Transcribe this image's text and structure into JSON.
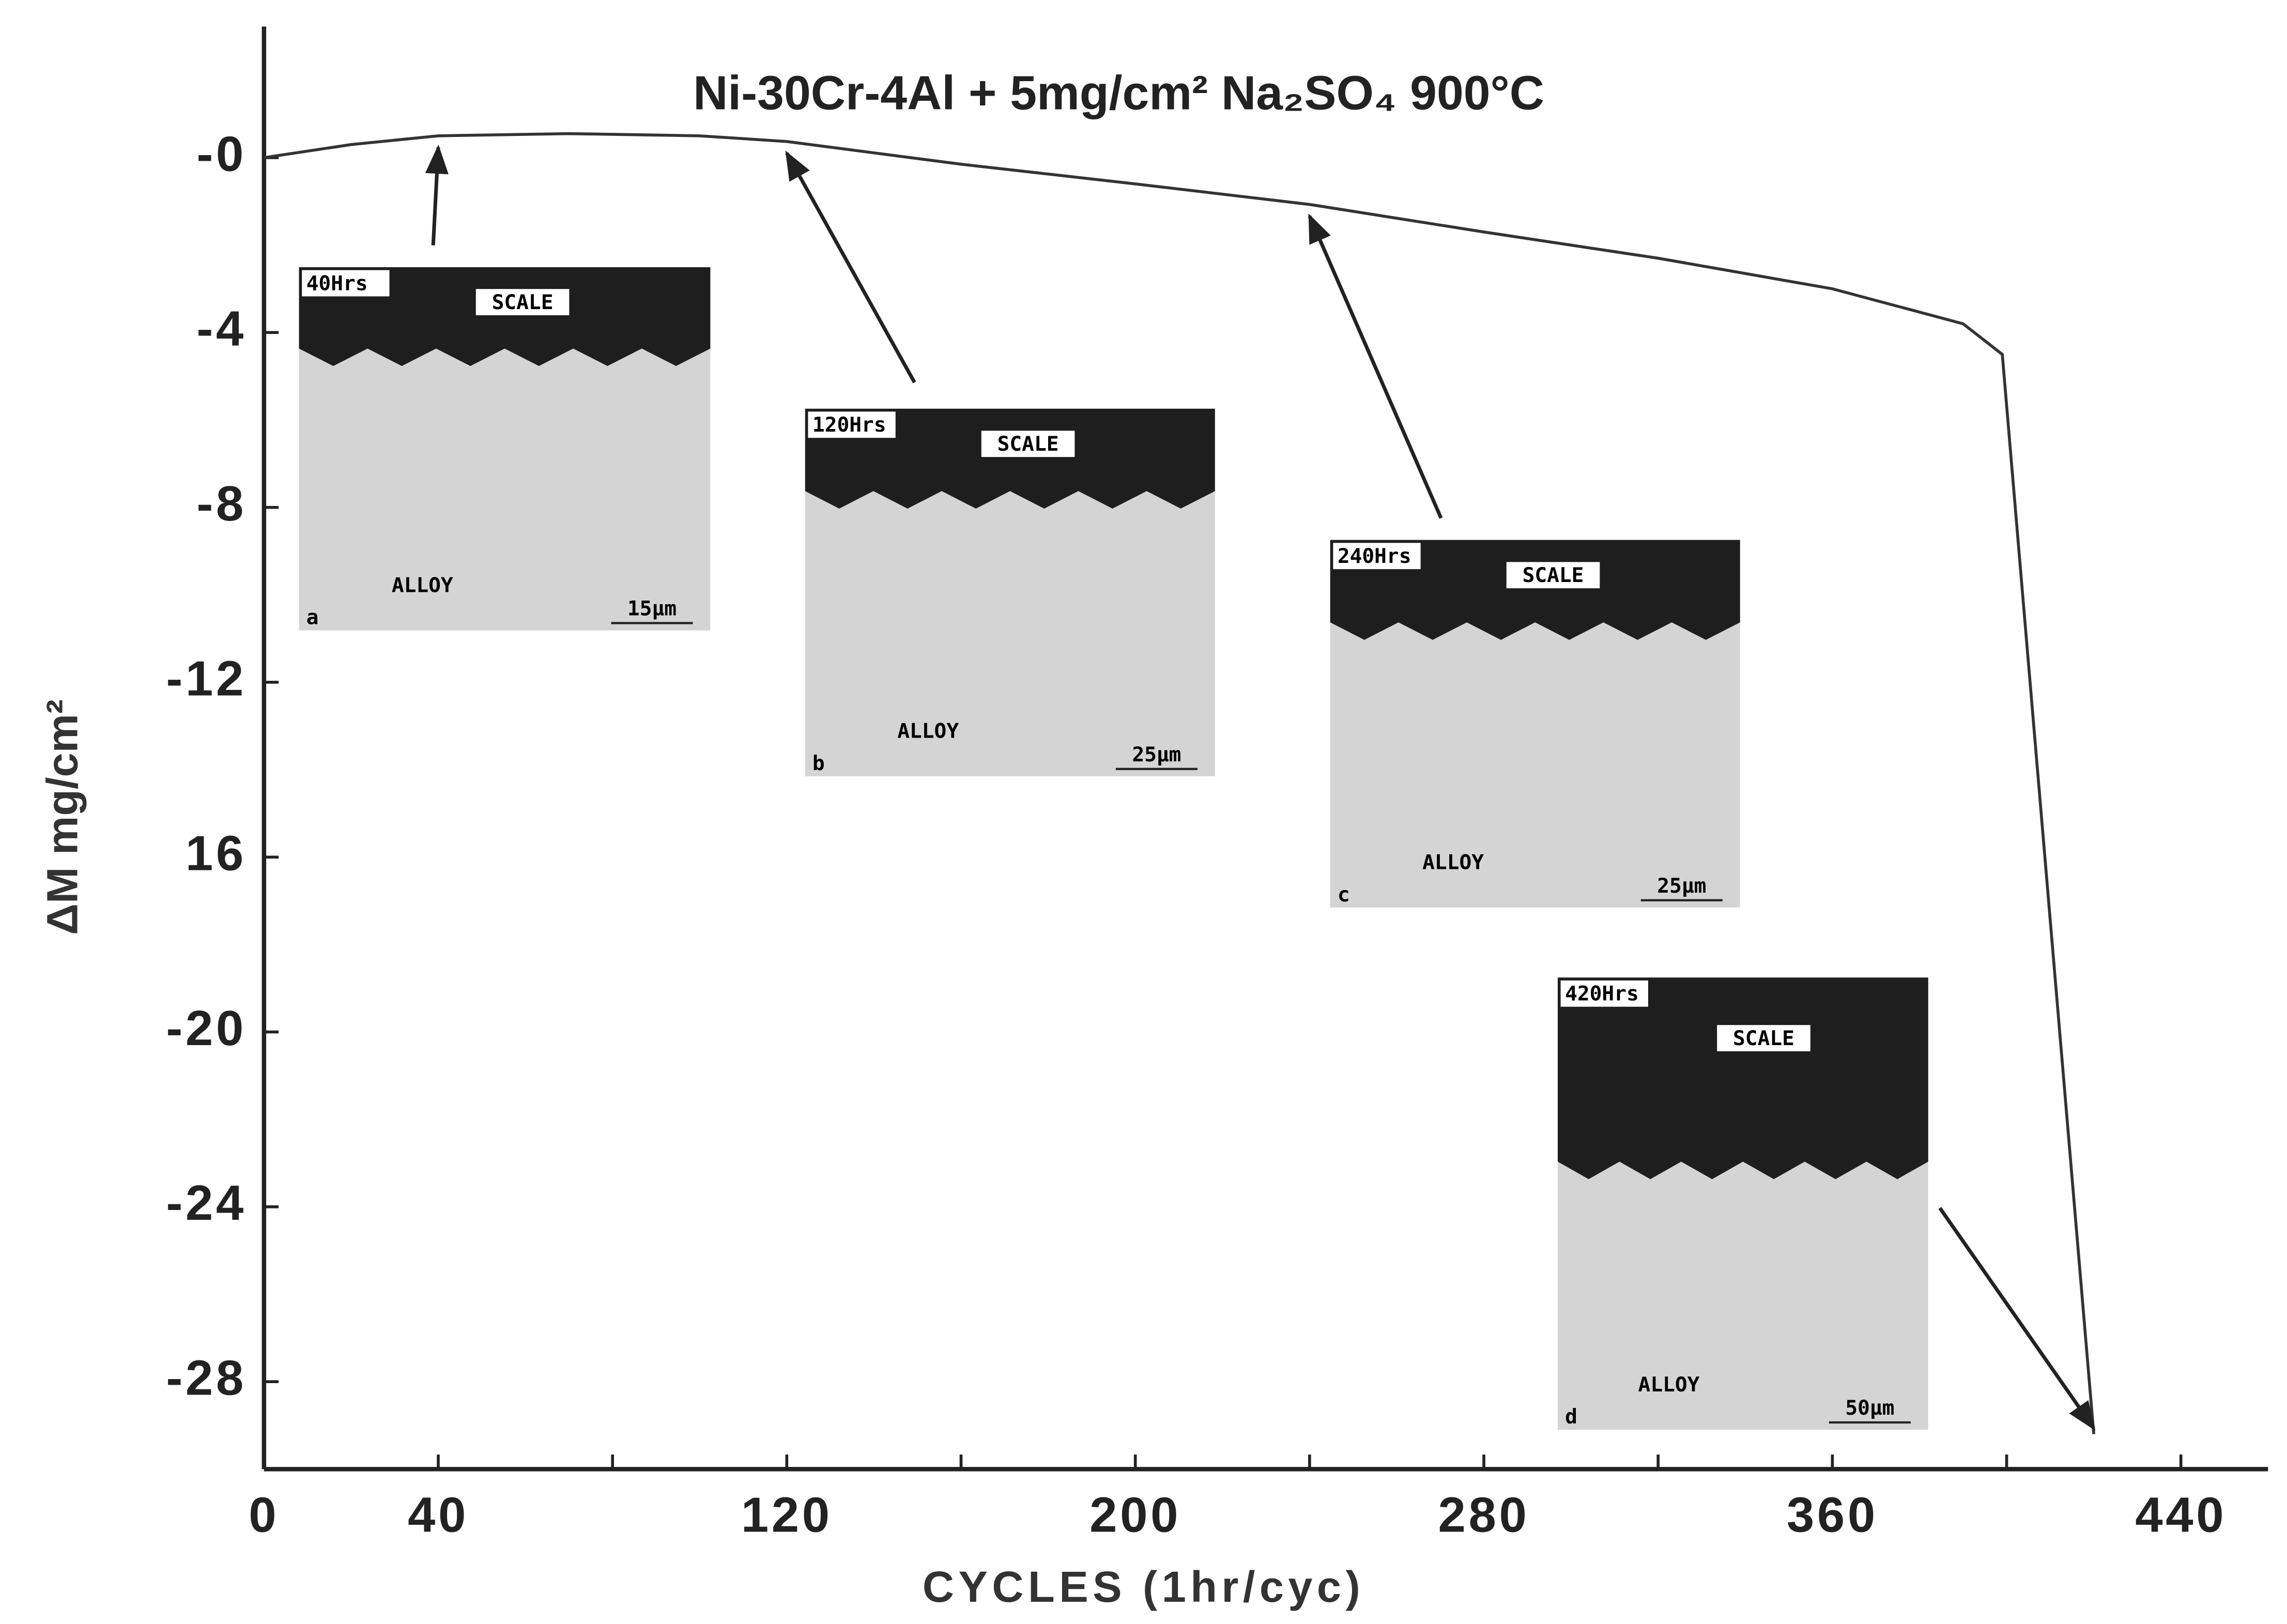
{
  "chart_data": {
    "type": "line",
    "title": "Ni-30Cr-4Al + 5mg/cm² Na₂SO₄ 900°C",
    "x_label": "CYCLES (1hr/cyc)",
    "y_label": "ΔM mg/cm²",
    "x": [
      0,
      20,
      40,
      70,
      100,
      120,
      160,
      200,
      240,
      280,
      320,
      360,
      390,
      399,
      420
    ],
    "series": [
      {
        "color": "#333333",
        "values": [
          0,
          0.3,
          0.5,
          0.55,
          0.5,
          0.37,
          -0.15,
          -0.6,
          -1.07,
          -1.7,
          -2.3,
          -3.0,
          -3.8,
          -4.5,
          -29.2
        ]
      }
    ],
    "xlim": [
      0,
      460
    ],
    "ylim": [
      -30,
      3
    ],
    "xticks": [
      0,
      40,
      120,
      200,
      280,
      360,
      440
    ],
    "x_minor_ticks": [
      80,
      160,
      240,
      320,
      400
    ],
    "yticks": [
      {
        "value": 0,
        "label": "-0"
      },
      -4,
      -8,
      -12,
      {
        "value": -16,
        "label": "16"
      },
      -20,
      -24,
      -28
    ],
    "insets": [
      {
        "time": "40Hrs",
        "scale": "SCALE",
        "alloy": "ALLOY",
        "bar": "15µm",
        "letter": "a",
        "points_to": 40
      },
      {
        "time": "120Hrs",
        "scale": "SCALE",
        "alloy": "ALLOY",
        "bar": "25µm",
        "letter": "b",
        "points_to": 120
      },
      {
        "time": "240Hrs",
        "scale": "SCALE",
        "alloy": "ALLOY",
        "bar": "25µm",
        "letter": "c",
        "points_to": 240
      },
      {
        "time": "420Hrs",
        "scale": "SCALE",
        "alloy": "ALLOY",
        "bar": "50µm",
        "letter": "d",
        "points_to": 420
      }
    ]
  }
}
